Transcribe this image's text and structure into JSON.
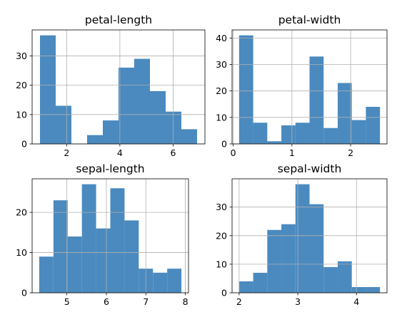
{
  "chart_data": [
    {
      "type": "bar",
      "title": "petal-length",
      "xlabel": "",
      "ylabel": "",
      "bin_edges": [
        1.0,
        1.59,
        2.18,
        2.77,
        3.36,
        3.95,
        4.54,
        5.13,
        5.72,
        6.31,
        6.9
      ],
      "values": [
        37,
        13,
        0,
        3,
        8,
        26,
        29,
        18,
        11,
        5
      ],
      "xlim": [
        0.705,
        7.195
      ],
      "ylim": [
        0,
        38.85
      ],
      "xticks": [
        2,
        4,
        6
      ],
      "yticks": [
        0,
        10,
        20,
        30
      ],
      "grid": true,
      "color": "#4a8abf"
    },
    {
      "type": "bar",
      "title": "petal-width",
      "xlabel": "",
      "ylabel": "",
      "bin_edges": [
        0.1,
        0.34,
        0.58,
        0.82,
        1.06,
        1.3,
        1.54,
        1.78,
        2.02,
        2.26,
        2.5
      ],
      "values": [
        41,
        8,
        1,
        7,
        8,
        33,
        6,
        23,
        9,
        14
      ],
      "xlim": [
        -0.02,
        2.62
      ],
      "ylim": [
        0,
        43.05
      ],
      "xticks": [
        0,
        1,
        2
      ],
      "yticks": [
        0,
        10,
        20,
        30,
        40
      ],
      "grid": true,
      "color": "#4a8abf"
    },
    {
      "type": "bar",
      "title": "sepal-length",
      "xlabel": "",
      "ylabel": "",
      "bin_edges": [
        4.3,
        4.66,
        5.02,
        5.38,
        5.74,
        6.1,
        6.46,
        6.82,
        7.18,
        7.54,
        7.9
      ],
      "values": [
        9,
        23,
        14,
        27,
        16,
        26,
        18,
        6,
        5,
        6
      ],
      "xlim": [
        4.12,
        8.08
      ],
      "ylim": [
        0,
        28.35
      ],
      "xticks": [
        5,
        6,
        7,
        8
      ],
      "yticks": [
        0,
        10,
        20
      ],
      "grid": true,
      "color": "#4a8abf"
    },
    {
      "type": "bar",
      "title": "sepal-width",
      "xlabel": "",
      "ylabel": "",
      "bin_edges": [
        2.0,
        2.24,
        2.48,
        2.72,
        2.96,
        3.2,
        3.44,
        3.68,
        3.92,
        4.16,
        4.4
      ],
      "values": [
        4,
        7,
        22,
        24,
        38,
        31,
        9,
        11,
        2,
        2
      ],
      "xlim": [
        1.88,
        4.52
      ],
      "ylim": [
        0,
        39.9
      ],
      "xticks": [
        2,
        3,
        4
      ],
      "yticks": [
        0,
        10,
        20,
        30
      ],
      "grid": true,
      "color": "#4a8abf"
    }
  ]
}
